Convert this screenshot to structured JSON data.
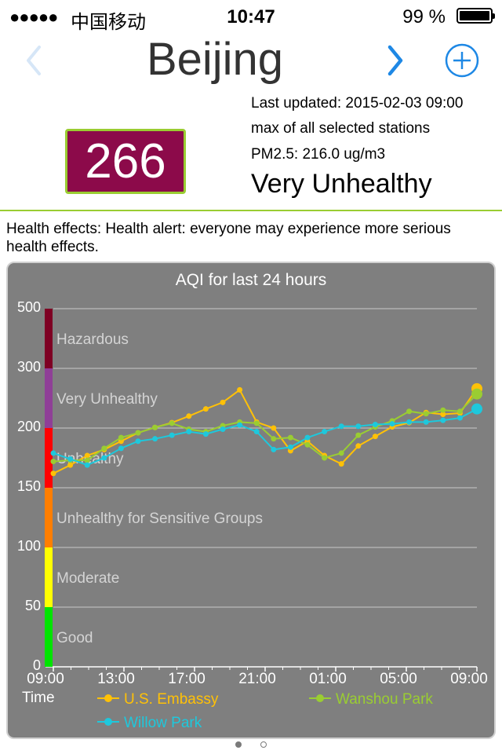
{
  "status_bar": {
    "signal": "●●●●●",
    "carrier": "中国移动",
    "time": "10:47",
    "battery": "99 %"
  },
  "header": {
    "city": "Beijing",
    "prev_icon": "chevron-left-icon",
    "next_icon": "chevron-right-icon",
    "add_icon": "plus-circle-icon",
    "accent_color": "#1E88E5"
  },
  "summary": {
    "aqi": "266",
    "aqi_bg_color": "#8C0A4A",
    "last_updated": "Last updated: 2015-02-03 09:00",
    "selection": "max of all selected stations",
    "pm25": "PM2.5: 216.0 ug/m3",
    "category": "Very Unhealthy"
  },
  "health_effects": "Health effects: Health alert: everyone may experience more serious health effects.",
  "chart_data": {
    "type": "line",
    "title": "AQI for last 24 hours",
    "xlabel": "Time",
    "ylabel": "",
    "x_tick_labels": [
      "09:00",
      "13:00",
      "17:00",
      "21:00",
      "01:00",
      "05:00",
      "09:00"
    ],
    "y_tick_labels": [
      "0",
      "50",
      "100",
      "150",
      "200",
      "300",
      "500"
    ],
    "bands": [
      {
        "label": "Good",
        "color": "#00E400"
      },
      {
        "label": "Moderate",
        "color": "#FFFF00"
      },
      {
        "label": "Unhealthy for Sensitive Groups",
        "color": "#FF7E00"
      },
      {
        "label": "Unhealthy",
        "color": "#FF0000"
      },
      {
        "label": "Very Unhealthy",
        "color": "#8F3F97"
      },
      {
        "label": "Hazardous",
        "color": "#7E0023"
      }
    ],
    "series": [
      {
        "name": "U.S. Embassy",
        "color": "#FFC107",
        "values": [
          162,
          169,
          177,
          182,
          189,
          196,
          201,
          209,
          220,
          232,
          243,
          264,
          210,
          200,
          181,
          189,
          177,
          170,
          185,
          193,
          202,
          209,
          226,
          223,
          225,
          266
        ]
      },
      {
        "name": "Wanshou Park",
        "color": "#9ACD32",
        "values": [
          172,
          173,
          173,
          183,
          192,
          196,
          201,
          208,
          199,
          197,
          204,
          210,
          208,
          191,
          192,
          186,
          175,
          179,
          194,
          202,
          212,
          228,
          224,
          230,
          228,
          257
        ]
      },
      {
        "name": "Willow Park",
        "color": "#1EC8DC",
        "values": [
          179,
          174,
          169,
          175,
          183,
          189,
          191,
          194,
          197,
          195,
          199,
          205,
          197,
          182,
          184,
          192,
          197,
          203,
          203,
          206,
          207,
          210,
          210,
          213,
          217,
          232
        ]
      }
    ],
    "grid": true,
    "legend_position": "bottom"
  },
  "pager": {
    "active_index": 0,
    "count": 2
  }
}
